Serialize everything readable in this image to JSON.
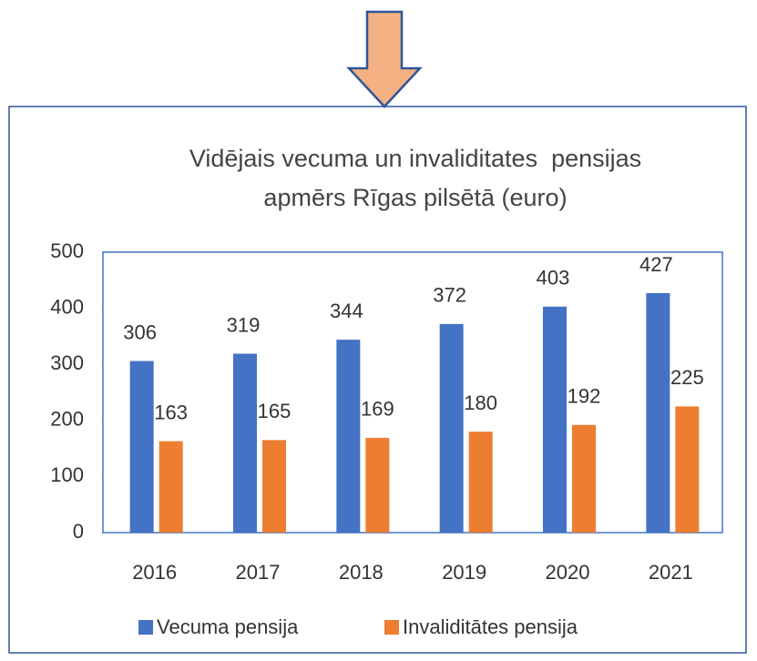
{
  "chart_data": {
    "type": "bar",
    "title": [
      "Vidējais vecuma un invaliditates  pensijas",
      "apmērs Rīgas pilsētā (euro)"
    ],
    "categories": [
      "2016",
      "2017",
      "2018",
      "2019",
      "2020",
      "2021"
    ],
    "series": [
      {
        "name": "Vecuma pensija",
        "color": "#4472c4",
        "values": [
          306,
          319,
          344,
          372,
          403,
          427
        ]
      },
      {
        "name": "Invaliditātes pensija",
        "color": "#ed7d31",
        "values": [
          163,
          165,
          169,
          180,
          192,
          225
        ]
      }
    ],
    "ylim": [
      0,
      500
    ],
    "yticks": [
      0,
      100,
      200,
      300,
      400,
      500
    ],
    "legend": "bottom"
  }
}
